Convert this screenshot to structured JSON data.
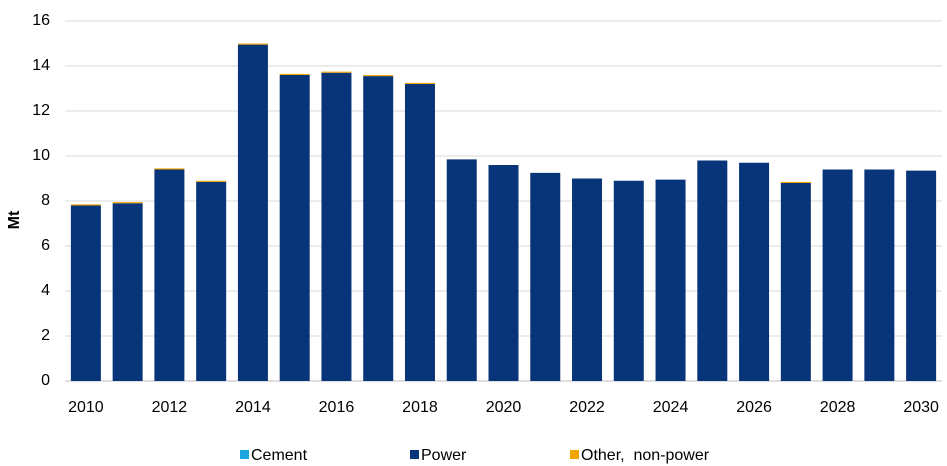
{
  "chart_data": {
    "type": "stacked_bar",
    "y_label": "Mt",
    "categories": [
      "2010",
      null,
      "2012",
      null,
      "2014",
      null,
      "2016",
      null,
      "2018",
      null,
      "2020",
      null,
      "2022",
      null,
      "2024",
      null,
      "2026",
      null,
      "2028",
      null,
      "2030"
    ],
    "series": [
      {
        "name": "Cement",
        "color": "#1aa7e0",
        "values": [
          0,
          0,
          0,
          0,
          0,
          0,
          0,
          0,
          0,
          0,
          0,
          0,
          0,
          0,
          0,
          0,
          0,
          0,
          0,
          0,
          0
        ]
      },
      {
        "name": "Power",
        "color": "#08357a",
        "values": [
          7.8,
          7.9,
          9.4,
          8.85,
          14.95,
          13.6,
          13.7,
          13.55,
          13.2,
          9.85,
          9.6,
          9.25,
          9.0,
          8.9,
          8.95,
          9.8,
          9.7,
          8.8,
          9.4,
          9.4,
          9.35
        ]
      },
      {
        "name": "Other,  non-power",
        "color": "#f0a500",
        "values": [
          0.05,
          0.05,
          0.05,
          0.05,
          0.05,
          0.05,
          0.05,
          0.05,
          0.05,
          0,
          0,
          0,
          0,
          0,
          0,
          0,
          0,
          0.05,
          0,
          0,
          0
        ]
      }
    ],
    "ylim": [
      0,
      16
    ],
    "yticks": [
      0,
      2,
      4,
      6,
      8,
      10,
      12,
      14,
      16
    ],
    "grid": true
  }
}
